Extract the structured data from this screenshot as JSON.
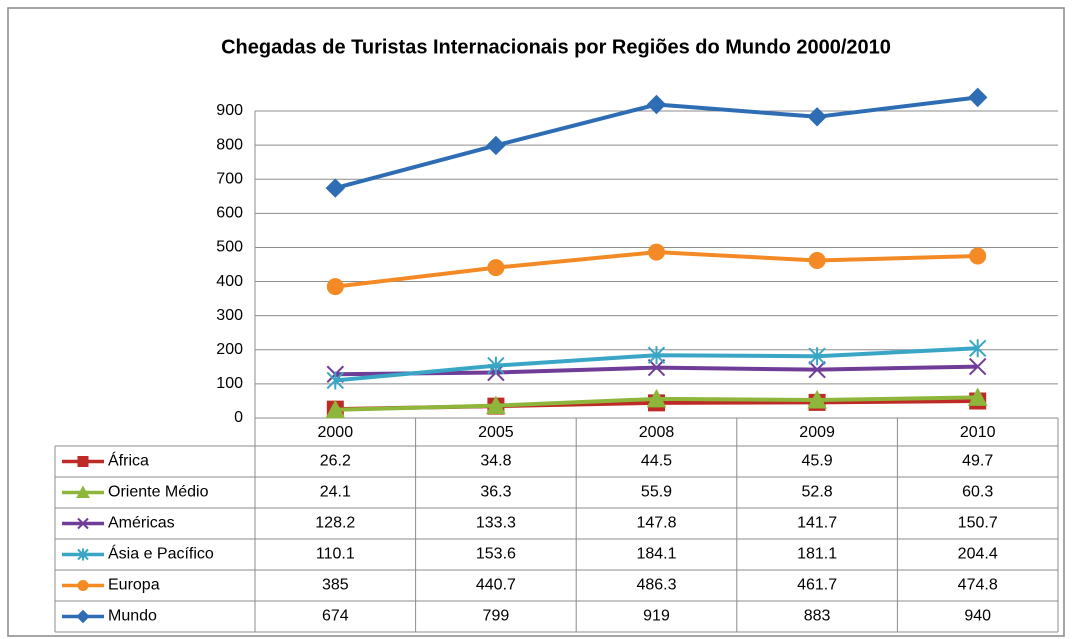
{
  "chart_data": {
    "type": "line",
    "title": "Chegadas de Turistas Internacionais  por Regiões do Mundo 2000/2010",
    "categories": [
      "2000",
      "2005",
      "2008",
      "2009",
      "2010"
    ],
    "ylim": [
      0,
      900
    ],
    "yticks": [
      0,
      100,
      200,
      300,
      400,
      500,
      600,
      700,
      800,
      900
    ],
    "grid": true,
    "series": [
      {
        "name": "África",
        "color": "#be2a25",
        "marker": "square",
        "values": [
          26.2,
          34.8,
          44.5,
          45.9,
          49.7
        ]
      },
      {
        "name": "Oriente Médio",
        "color": "#8db63a",
        "marker": "triangle",
        "values": [
          24.1,
          36.3,
          55.9,
          52.8,
          60.3
        ]
      },
      {
        "name": "Américas",
        "color": "#6f3d97",
        "marker": "x",
        "values": [
          128.2,
          133.3,
          147.8,
          141.7,
          150.7
        ]
      },
      {
        "name": "Ásia e Pacífico",
        "color": "#3aa6c6",
        "marker": "star",
        "values": [
          110.1,
          153.6,
          184.1,
          181.1,
          204.4
        ]
      },
      {
        "name": "Europa",
        "color": "#f38a25",
        "marker": "circle",
        "values": [
          385,
          440.7,
          486.3,
          461.7,
          474.8
        ]
      },
      {
        "name": "Mundo",
        "color": "#2e6db4",
        "marker": "diamond",
        "values": [
          674,
          799,
          919,
          883,
          940
        ]
      }
    ]
  }
}
